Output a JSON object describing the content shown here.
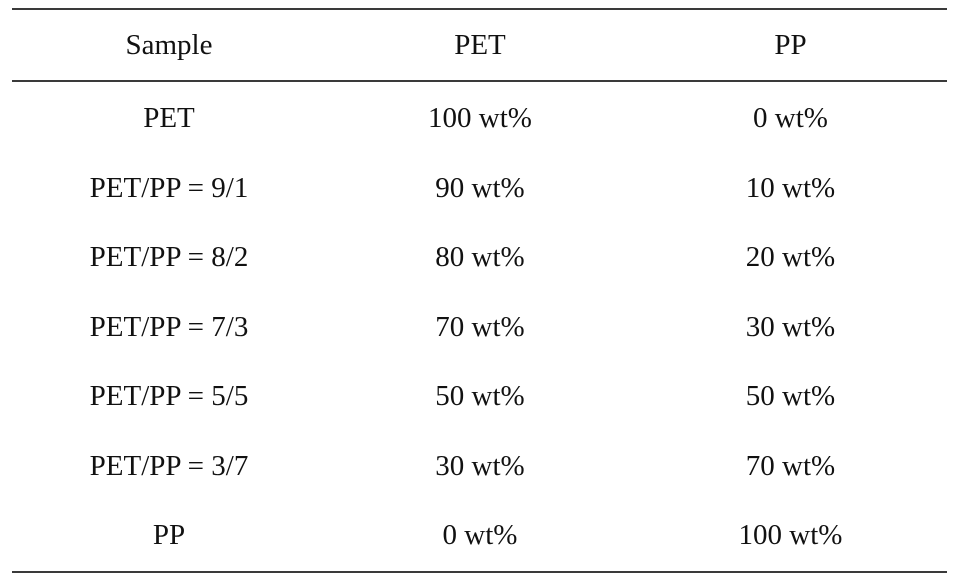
{
  "table": {
    "headers": [
      "Sample",
      "PET",
      "PP"
    ],
    "rows": [
      [
        "PET",
        "100 wt%",
        "0 wt%"
      ],
      [
        "PET/PP = 9/1",
        "90 wt%",
        "10 wt%"
      ],
      [
        "PET/PP = 8/2",
        "80 wt%",
        "20 wt%"
      ],
      [
        "PET/PP = 7/3",
        "70 wt%",
        "30 wt%"
      ],
      [
        "PET/PP = 5/5",
        "50 wt%",
        "50 wt%"
      ],
      [
        "PET/PP = 3/7",
        "30 wt%",
        "70 wt%"
      ],
      [
        "PP",
        "0 wt%",
        "100 wt%"
      ]
    ]
  }
}
